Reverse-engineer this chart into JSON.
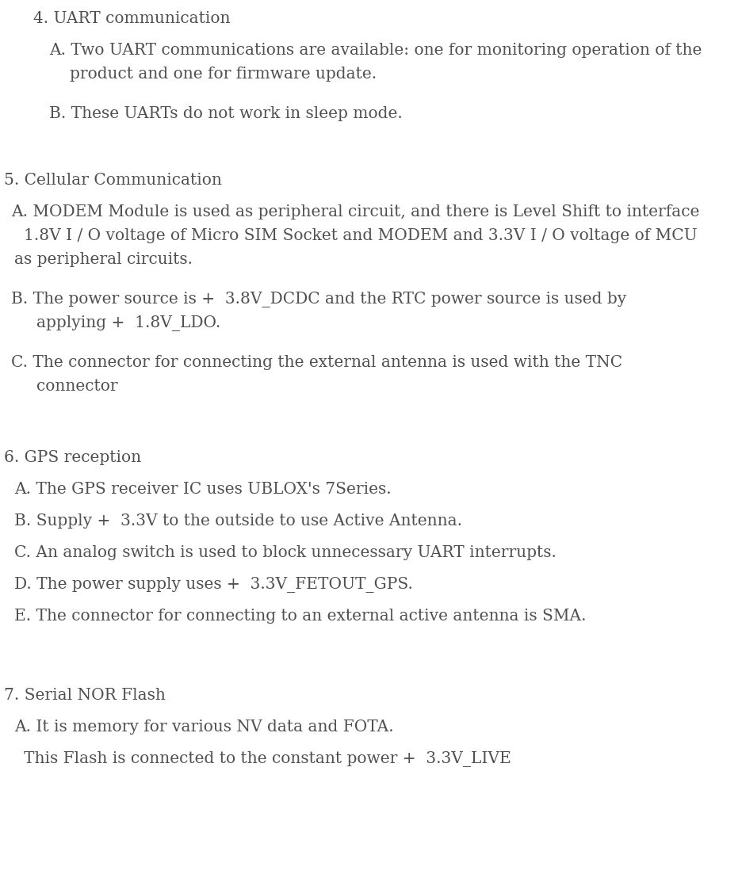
{
  "bg_color": "#ffffff",
  "text_color": "#505050",
  "font_size": 14.5,
  "font_family": "serif",
  "fig_width": 9.37,
  "fig_height": 11.08,
  "dpi": 100,
  "lines": [
    {
      "text": "4. UART communication",
      "xpx": 42,
      "ypx": 14
    },
    {
      "text": "A. Two UART communications are available: one for monitoring operation of the",
      "xpx": 62,
      "ypx": 54
    },
    {
      "text": "product and one for firmware update.",
      "xpx": 88,
      "ypx": 84
    },
    {
      "text": "B. These UARTs do not work in sleep mode.",
      "xpx": 62,
      "ypx": 134
    },
    {
      "text": "5. Cellular Communication",
      "xpx": 5,
      "ypx": 218
    },
    {
      "text": "A. MODEM Module is used as peripheral circuit, and there is Level Shift to interface",
      "xpx": 14,
      "ypx": 258
    },
    {
      "text": "1.8V I / O voltage of Micro SIM Socket and MODEM and 3.3V I / O voltage of MCU",
      "xpx": 30,
      "ypx": 288
    },
    {
      "text": "as peripheral circuits.",
      "xpx": 18,
      "ypx": 318
    },
    {
      "text": "B. The power source is +  3.8V_DCDC and the RTC power source is used by",
      "xpx": 14,
      "ypx": 368
    },
    {
      "text": "applying +  1.8V_LDO.",
      "xpx": 46,
      "ypx": 398
    },
    {
      "text": "C. The connector for connecting the external antenna is used with the TNC",
      "xpx": 14,
      "ypx": 448
    },
    {
      "text": "connector",
      "xpx": 46,
      "ypx": 478
    },
    {
      "text": "6. GPS reception",
      "xpx": 5,
      "ypx": 568
    },
    {
      "text": "A. The GPS receiver IC uses UBLOX's 7Series.",
      "xpx": 18,
      "ypx": 608
    },
    {
      "text": "B. Supply +  3.3V to the outside to use Active Antenna.",
      "xpx": 18,
      "ypx": 648
    },
    {
      "text": "C. An analog switch is used to block unnecessary UART interrupts.",
      "xpx": 18,
      "ypx": 688
    },
    {
      "text": "D. The power supply uses +  3.3V_FETOUT_GPS.",
      "xpx": 18,
      "ypx": 728
    },
    {
      "text": "E. The connector for connecting to an external active antenna is SMA.",
      "xpx": 18,
      "ypx": 768
    },
    {
      "text": "7. Serial NOR Flash",
      "xpx": 5,
      "ypx": 868
    },
    {
      "text": "A. It is memory for various NV data and FOTA.",
      "xpx": 18,
      "ypx": 908
    },
    {
      "text": "This Flash is connected to the constant power +  3.3V_LIVE",
      "xpx": 30,
      "ypx": 948
    }
  ]
}
